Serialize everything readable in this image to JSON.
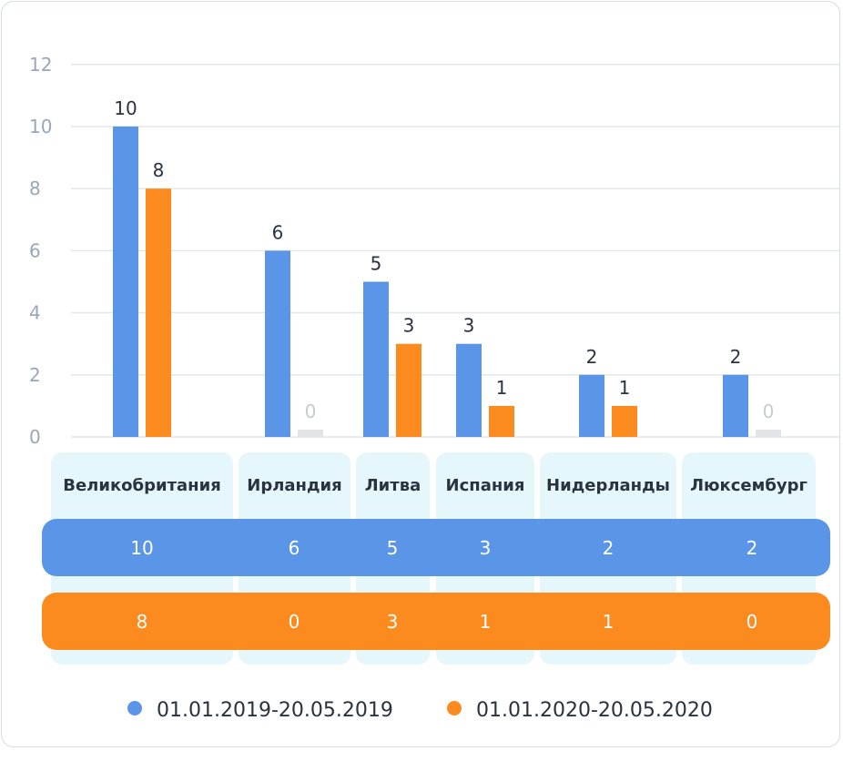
{
  "chart_data": {
    "type": "bar",
    "categories": [
      "Великобритания",
      "Ирландия",
      "Литва",
      "Испания",
      "Нидерланды",
      "Люксембург"
    ],
    "series": [
      {
        "name": "01.01.2019-20.05.2019",
        "values": [
          10,
          6,
          5,
          3,
          2,
          2
        ],
        "color": "#5b95e8"
      },
      {
        "name": "01.01.2020-20.05.2020",
        "values": [
          8,
          0,
          3,
          1,
          1,
          0
        ],
        "color": "#fb8b1e"
      }
    ],
    "yticks": [
      0,
      2,
      4,
      6,
      8,
      10,
      12
    ],
    "ylim": [
      0,
      12
    ],
    "grid": true,
    "legend_position": "bottom"
  }
}
